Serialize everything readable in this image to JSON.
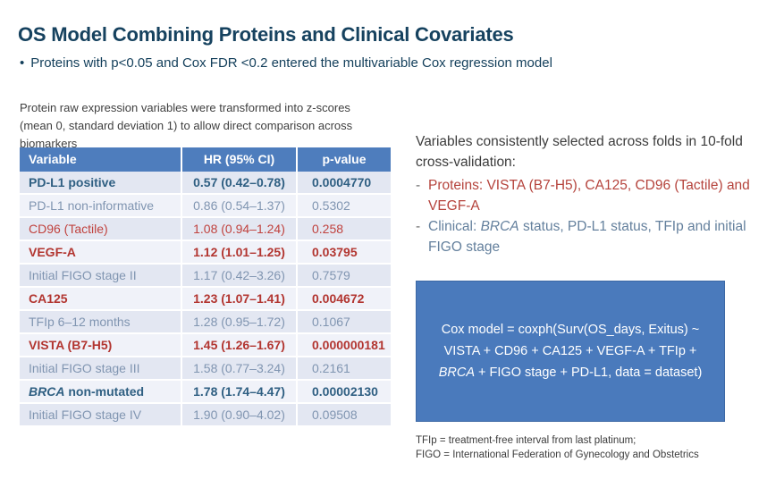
{
  "slide": {
    "title": "OS Model Combining Proteins and Clinical Covariates",
    "bullet_marker": "•",
    "bullet": "Proteins with p<0.05 and Cox FDR <0.2 entered the multivariable Cox regression model",
    "note_line1": "Protein raw expression variables were transformed into z-scores",
    "note_line2": "(mean 0, standard deviation 1) to allow direct comparison across biomarkers"
  },
  "table": {
    "headers": [
      "Variable",
      "HR (95% CI)",
      "p-value"
    ],
    "rows": [
      {
        "variable": "PD-L1 positive",
        "hr": "0.57 (0.42–0.78)",
        "p": "0.0004770",
        "style": "bold-blue"
      },
      {
        "variable": "PD-L1 non-informative",
        "hr": "0.86 (0.54–1.37)",
        "p": "0.5302",
        "style": "blue"
      },
      {
        "variable": "CD96 (Tactile)",
        "hr": "1.08 (0.94–1.24)",
        "p": "0.258",
        "style": "red"
      },
      {
        "variable": "VEGF-A",
        "hr": "1.12 (1.01–1.25)",
        "p": "0.03795",
        "style": "bold-red"
      },
      {
        "variable": "Initial FIGO stage II",
        "hr": "1.17 (0.42–3.26)",
        "p": "0.7579",
        "style": "blue"
      },
      {
        "variable": "CA125",
        "hr": "1.23 (1.07–1.41)",
        "p": "0.004672",
        "style": "bold-red"
      },
      {
        "variable": "TFIp 6–12 months",
        "hr": "1.28 (0.95–1.72)",
        "p": "0.1067",
        "style": "blue"
      },
      {
        "variable": "VISTA (B7-H5)",
        "hr": "1.45 (1.26–1.67)",
        "p": "0.000000181",
        "style": "bold-red"
      },
      {
        "variable": "Initial FIGO stage III",
        "hr": "1.58 (0.77–3.24)",
        "p": "0.2161",
        "style": "blue"
      },
      {
        "variable_italic": "BRCA",
        "variable": " non-mutated",
        "hr": "1.78 (1.74–4.47)",
        "p": "0.00002130",
        "style": "bold-blue"
      },
      {
        "variable": "Initial FIGO stage IV",
        "hr": "1.90 (0.90–4.02)",
        "p": "0.09508",
        "style": "blue"
      }
    ]
  },
  "right": {
    "heading": "Variables consistently selected across folds in 10-fold cross-validation:",
    "bullets": [
      {
        "dash": "-",
        "style": "red",
        "segments": [
          {
            "text": "Proteins: VISTA (B7-H5), CA125, CD96 (Tactile) and VEGF-A"
          }
        ]
      },
      {
        "dash": "-",
        "style": "slate",
        "segments": [
          {
            "text": "Clinical: "
          },
          {
            "text": "BRCA",
            "italic": true
          },
          {
            "text": " status, PD-L1 status, TFIp and initial FIGO stage"
          }
        ]
      }
    ],
    "box_lines": [
      [
        {
          "text": "Cox model = coxph(Surv(OS_days, Exitus) ~"
        }
      ],
      [
        {
          "text": "VISTA + CD96 + CA125 + VEGF-A + TFIp +"
        }
      ],
      [
        {
          "text": "BRCA",
          "italic": true
        },
        {
          "text": " + FIGO stage + PD-L1, data = dataset)"
        }
      ]
    ],
    "footnote_line1": "TFIp = treatment-free interval from last platinum;",
    "footnote_line2": "FIGO = International Federation of Gynecology and Obstetrics"
  },
  "colors": {
    "title_navy": "#16425f",
    "table_header_blue": "#4e7dbd",
    "row_odd": "#e3e7f2",
    "row_even": "#f0f2f9",
    "significant_red": "#b23530",
    "steel_blue_text": "#2f5f82",
    "muted_blue_text": "#8095b1",
    "formula_box_blue": "#4a7abc"
  }
}
